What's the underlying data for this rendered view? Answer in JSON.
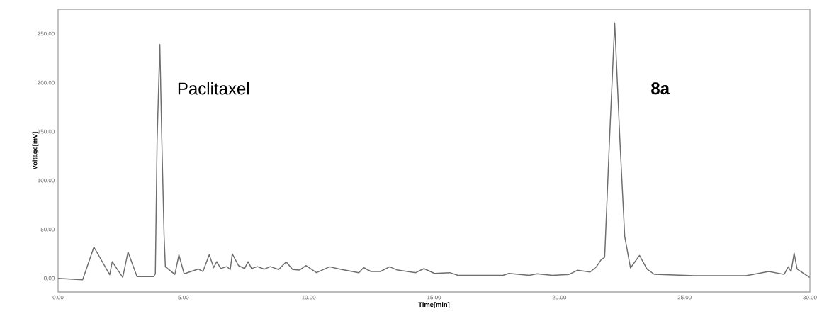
{
  "chart_data": {
    "type": "line",
    "xlabel": "Time[min]",
    "ylabel": "Voltage[mV]",
    "color": "#6e6e6e",
    "x": [
      0,
      0.98,
      1.43,
      2.06,
      2.16,
      2.58,
      2.79,
      3.15,
      3.81,
      3.88,
      3.95,
      4.06,
      4.14,
      4.23,
      4.28,
      4.66,
      4.82,
      5.03,
      5.6,
      5.78,
      6.03,
      6.21,
      6.33,
      6.49,
      6.73,
      6.87,
      6.95,
      7.2,
      7.44,
      7.58,
      7.72,
      7.95,
      8.23,
      8.47,
      8.8,
      9.1,
      9.36,
      9.64,
      9.89,
      10.31,
      10.83,
      11.25,
      12.0,
      12.19,
      12.48,
      12.86,
      13.23,
      13.51,
      14.27,
      14.6,
      15.02,
      15.63,
      15.96,
      17.75,
      17.99,
      18.8,
      19.12,
      19.73,
      20.39,
      20.72,
      21.23,
      21.48,
      21.67,
      21.81,
      22.0,
      22.21,
      22.42,
      22.61,
      22.84,
      23.2,
      23.5,
      23.79,
      25.39,
      27.45,
      28.36,
      28.97,
      29.14,
      29.25,
      29.37,
      29.49,
      29.99
    ],
    "values": [
      0,
      -1.5,
      32,
      3.6,
      17,
      1,
      27,
      1.7,
      1.7,
      4.6,
      140,
      239,
      140,
      43,
      11.8,
      4,
      24,
      4.6,
      9.5,
      7,
      24,
      11,
      17,
      10,
      12,
      9,
      25,
      13,
      10,
      17,
      10,
      12,
      9.4,
      12,
      9,
      16.8,
      9,
      8.5,
      13,
      5.8,
      11.8,
      9.3,
      5.8,
      11,
      7,
      7,
      11.8,
      8.7,
      5.8,
      9.9,
      5,
      5.8,
      3,
      3,
      5,
      3,
      4.6,
      3,
      4,
      8.2,
      6.5,
      11.8,
      19,
      21.5,
      140,
      261,
      140,
      43,
      10.6,
      23.4,
      9.4,
      4.1,
      2.7,
      2.7,
      7,
      4,
      11.8,
      7,
      25.8,
      9.4,
      1
    ],
    "xlim": [
      0,
      30
    ],
    "ylim": [
      -14,
      275
    ],
    "xticks": [
      {
        "value": 0,
        "label": "0.00"
      },
      {
        "value": 5,
        "label": "5.00"
      },
      {
        "value": 10,
        "label": "10.00"
      },
      {
        "value": 15,
        "label": "15.00"
      },
      {
        "value": 20,
        "label": "20.00"
      },
      {
        "value": 25,
        "label": "25.00"
      },
      {
        "value": 30,
        "label": "30.00"
      }
    ],
    "yticks": [
      {
        "value": 0,
        "label": "-0.00"
      },
      {
        "value": 50,
        "label": "50.00"
      },
      {
        "value": 100,
        "label": "100.00"
      },
      {
        "value": 150,
        "label": "150.00"
      },
      {
        "value": 200,
        "label": "200.00"
      },
      {
        "value": 250,
        "label": "250.00"
      }
    ],
    "annotations": [
      "Paclitaxel",
      "**8a**"
    ]
  }
}
